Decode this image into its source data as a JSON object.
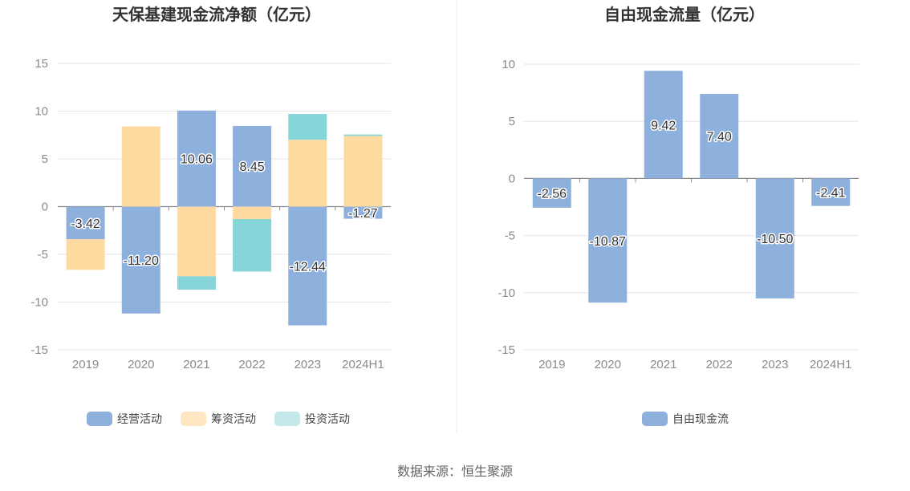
{
  "source_label": "数据来源：恒生聚源",
  "chart_data": [
    {
      "type": "bar",
      "stacked": true,
      "title": "天保基建现金流净额（亿元）",
      "categories": [
        "2019",
        "2020",
        "2021",
        "2022",
        "2023",
        "2024H1"
      ],
      "ylim": [
        -15,
        15
      ],
      "yticks": [
        15,
        10,
        5,
        0,
        -5,
        -10,
        -15
      ],
      "grid": true,
      "legend_position": "bottom-center",
      "series": [
        {
          "name": "经营活动",
          "color": "#8eb0dc",
          "values": [
            -3.42,
            -11.2,
            10.06,
            8.45,
            -12.44,
            -1.27
          ],
          "show_labels": true
        },
        {
          "name": "筹资活动",
          "color": "#ffdaa0",
          "values": [
            -3.2,
            8.4,
            -7.3,
            -1.3,
            7.0,
            7.4
          ],
          "show_labels": false
        },
        {
          "name": "投资活动",
          "color": "#86d5d8",
          "values": [
            0.0,
            0.0,
            -1.4,
            -5.5,
            2.7,
            0.15
          ],
          "show_labels": false
        }
      ],
      "data_labels": [
        "-3.42",
        "-11.20",
        "10.06",
        "8.45",
        "-12.44",
        "-1.27"
      ],
      "legend": [
        {
          "name": "经营活动",
          "color": "#8eb0dc"
        },
        {
          "name": "筹资活动",
          "color": "#ffe7c4"
        },
        {
          "name": "投资活动",
          "color": "#c3e9ea"
        }
      ]
    },
    {
      "type": "bar",
      "stacked": false,
      "title": "自由现金流量（亿元）",
      "categories": [
        "2019",
        "2020",
        "2021",
        "2022",
        "2023",
        "2024H1"
      ],
      "ylim": [
        -15,
        10
      ],
      "yticks": [
        10,
        5,
        0,
        -5,
        -10,
        -15
      ],
      "grid": true,
      "legend_position": "bottom-center",
      "series": [
        {
          "name": "自由现金流",
          "color": "#8eb0dc",
          "values": [
            -2.56,
            -10.87,
            9.42,
            7.4,
            -10.5,
            -2.41
          ],
          "show_labels": true
        }
      ],
      "data_labels": [
        "-2.56",
        "-10.87",
        "9.42",
        "7.40",
        "-10.50",
        "-2.41"
      ],
      "legend": [
        {
          "name": "自由现金流",
          "color": "#8eb0dc"
        }
      ]
    }
  ]
}
